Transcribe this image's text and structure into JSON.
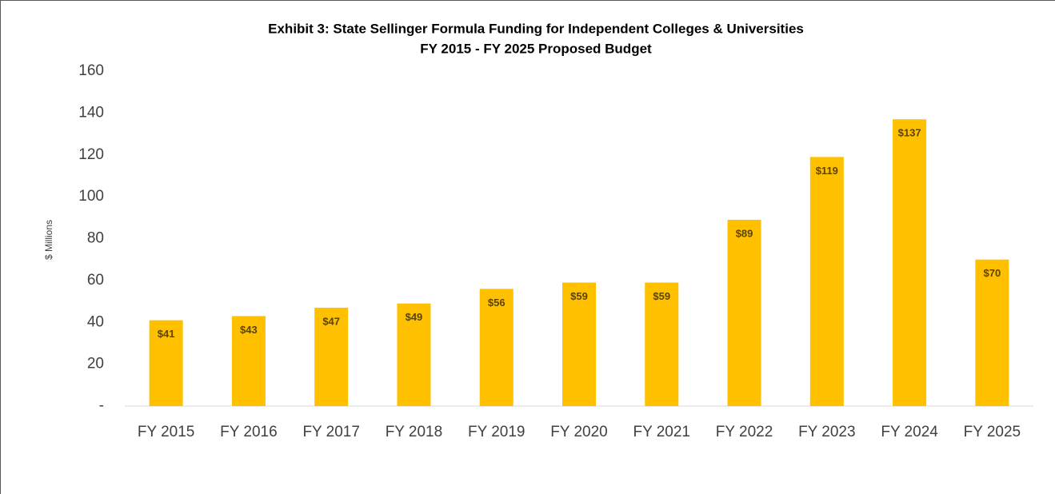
{
  "chart_data": {
    "type": "bar",
    "title": "Exhibit 3: State Sellinger Formula Funding for Independent Colleges & Universities",
    "subtitle": "FY 2015 - FY 2025 Proposed Budget",
    "y_label": "$ Millions",
    "categories": [
      "FY 2015",
      "FY 2016",
      "FY 2017",
      "FY 2018",
      "FY 2019",
      "FY 2020",
      "FY 2021",
      "FY 2022",
      "FY 2023",
      "FY 2024",
      "FY 2025"
    ],
    "values": [
      41,
      43,
      47,
      49,
      56,
      59,
      59,
      89,
      119,
      137,
      70
    ],
    "value_labels": [
      "$41",
      "$43",
      "$47",
      "$49",
      "$56",
      "$59",
      "$59",
      "$89",
      "$119",
      "$137",
      "$70"
    ],
    "color": "#ffc000",
    "ylim": [
      0,
      160
    ],
    "yticks": [
      {
        "value": 0,
        "label": "-"
      },
      20,
      40,
      60,
      80,
      100,
      120,
      140,
      160
    ],
    "grid": false
  }
}
